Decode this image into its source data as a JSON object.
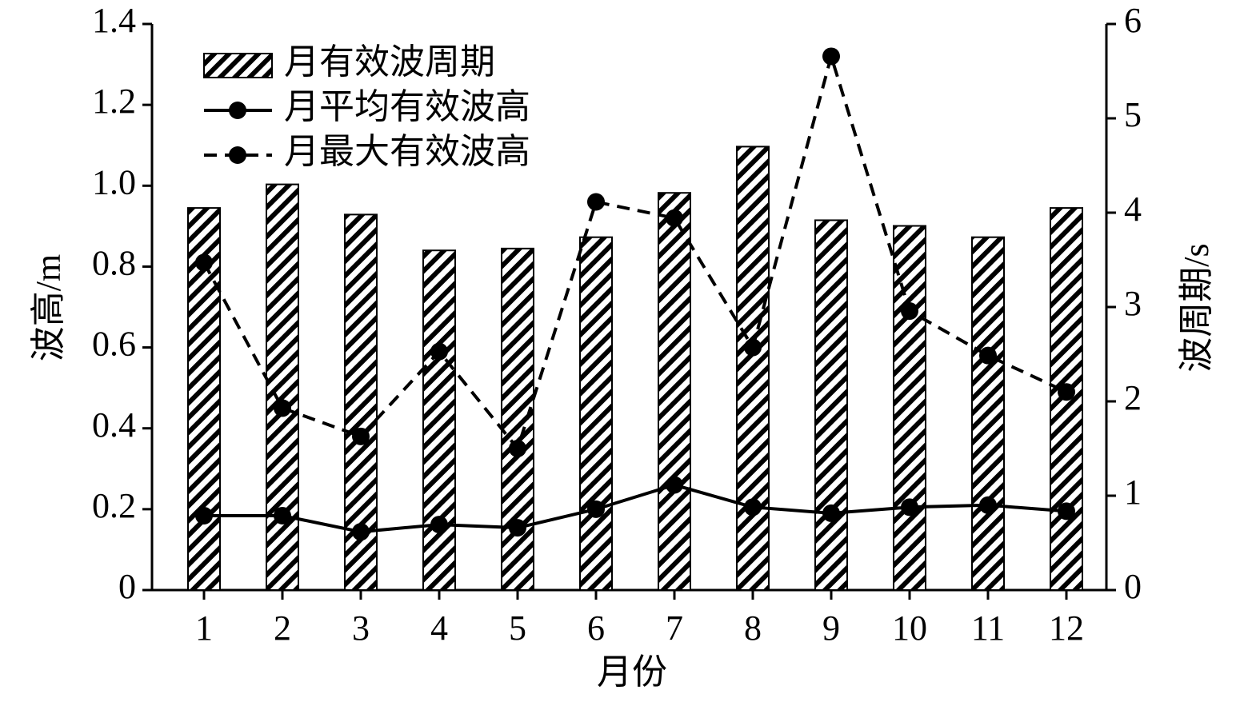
{
  "chart_data": {
    "type": "bar",
    "x_label": "月份",
    "y_label": "波高/m",
    "y2_label": "波周期/s",
    "categories": [
      "1",
      "2",
      "3",
      "4",
      "5",
      "6",
      "7",
      "8",
      "9",
      "10",
      "11",
      "12"
    ],
    "series": [
      {
        "name": "月有效波周期",
        "type": "bar",
        "axis": "y2",
        "color": "#000000",
        "values": [
          4.05,
          4.3,
          3.98,
          3.6,
          3.62,
          3.74,
          4.21,
          4.7,
          3.92,
          3.86,
          3.74,
          4.05
        ]
      },
      {
        "name": "月平均有效波高",
        "type": "line",
        "line_style": "solid",
        "color": "#000000",
        "values": [
          0.184,
          0.184,
          0.144,
          0.162,
          0.154,
          0.2,
          0.26,
          0.205,
          0.19,
          0.205,
          0.21,
          0.195
        ]
      },
      {
        "name": "月最大有效波高",
        "type": "line",
        "line_style": "dashed",
        "color": "#000000",
        "values": [
          0.81,
          0.45,
          0.38,
          0.59,
          0.35,
          0.96,
          0.92,
          0.6,
          1.32,
          0.69,
          0.58,
          0.49
        ]
      }
    ],
    "ylim": [
      0,
      1.4
    ],
    "yticks": [
      0,
      0.2,
      0.4,
      0.6,
      0.8,
      {
        "value": 1.0,
        "label": "1.0"
      },
      1.2,
      1.4
    ],
    "y2lim": [
      0,
      6
    ],
    "y2ticks": [
      0,
      1,
      2,
      3,
      4,
      5,
      6
    ],
    "legend": "upper left",
    "grid": false
  }
}
